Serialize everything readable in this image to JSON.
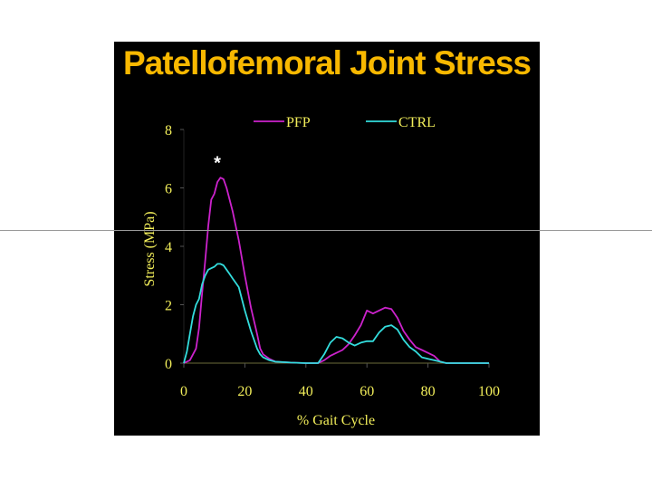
{
  "chart_data": {
    "type": "line",
    "title": "Patellofemoral Joint Stress",
    "xlabel": "% Gait Cycle",
    "ylabel": "Stress (MPa)",
    "xlim": [
      0,
      100
    ],
    "ylim": [
      0,
      8
    ],
    "xticks": [
      "0",
      "20",
      "40",
      "60",
      "80",
      "100"
    ],
    "yticks": [
      "0",
      "2",
      "4",
      "6",
      "8"
    ],
    "legend_position": "top",
    "annotations": [
      {
        "text": "*",
        "x": 11,
        "y": 6.9
      }
    ],
    "colors": {
      "PFP": "#cc22cc",
      "CTRL": "#33dddd",
      "text": "#f2ee5a",
      "title": "#f8b800"
    },
    "series": [
      {
        "name": "PFP",
        "x": [
          0,
          2,
          4,
          5,
          6,
          7,
          8,
          9,
          10,
          11,
          12,
          13,
          14,
          16,
          18,
          20,
          22,
          24,
          25,
          26,
          28,
          30,
          35,
          40,
          44,
          46,
          48,
          50,
          52,
          54,
          56,
          58,
          60,
          62,
          64,
          66,
          68,
          70,
          72,
          74,
          76,
          78,
          80,
          82,
          84,
          86,
          90,
          100
        ],
        "y": [
          0,
          0.1,
          0.5,
          1.2,
          2.4,
          3.5,
          4.7,
          5.6,
          5.8,
          6.2,
          6.35,
          6.3,
          6.0,
          5.2,
          4.2,
          3.0,
          1.9,
          1.0,
          0.5,
          0.3,
          0.15,
          0.05,
          0.02,
          0,
          0,
          0.1,
          0.25,
          0.35,
          0.45,
          0.65,
          0.95,
          1.3,
          1.8,
          1.7,
          1.8,
          1.9,
          1.85,
          1.55,
          1.1,
          0.8,
          0.55,
          0.45,
          0.35,
          0.25,
          0.05,
          0,
          0,
          0
        ]
      },
      {
        "name": "CTRL",
        "x": [
          0,
          1,
          2,
          3,
          4,
          5,
          6,
          7,
          8,
          9,
          10,
          11,
          12,
          13,
          14,
          15,
          16,
          18,
          20,
          22,
          24,
          25,
          26,
          28,
          30,
          35,
          40,
          44,
          46,
          48,
          50,
          52,
          54,
          56,
          58,
          60,
          62,
          64,
          66,
          68,
          70,
          72,
          74,
          76,
          78,
          80,
          82,
          84,
          86,
          90,
          100
        ],
        "y": [
          0,
          0.4,
          1.0,
          1.6,
          2.0,
          2.2,
          2.7,
          3.0,
          3.2,
          3.25,
          3.3,
          3.4,
          3.4,
          3.35,
          3.2,
          3.05,
          2.9,
          2.6,
          1.8,
          1.1,
          0.5,
          0.3,
          0.2,
          0.1,
          0.05,
          0.02,
          0,
          0,
          0.3,
          0.7,
          0.9,
          0.85,
          0.7,
          0.6,
          0.7,
          0.75,
          0.75,
          1.05,
          1.25,
          1.3,
          1.15,
          0.8,
          0.55,
          0.4,
          0.2,
          0.15,
          0.1,
          0.05,
          0,
          0,
          0
        ]
      }
    ]
  }
}
